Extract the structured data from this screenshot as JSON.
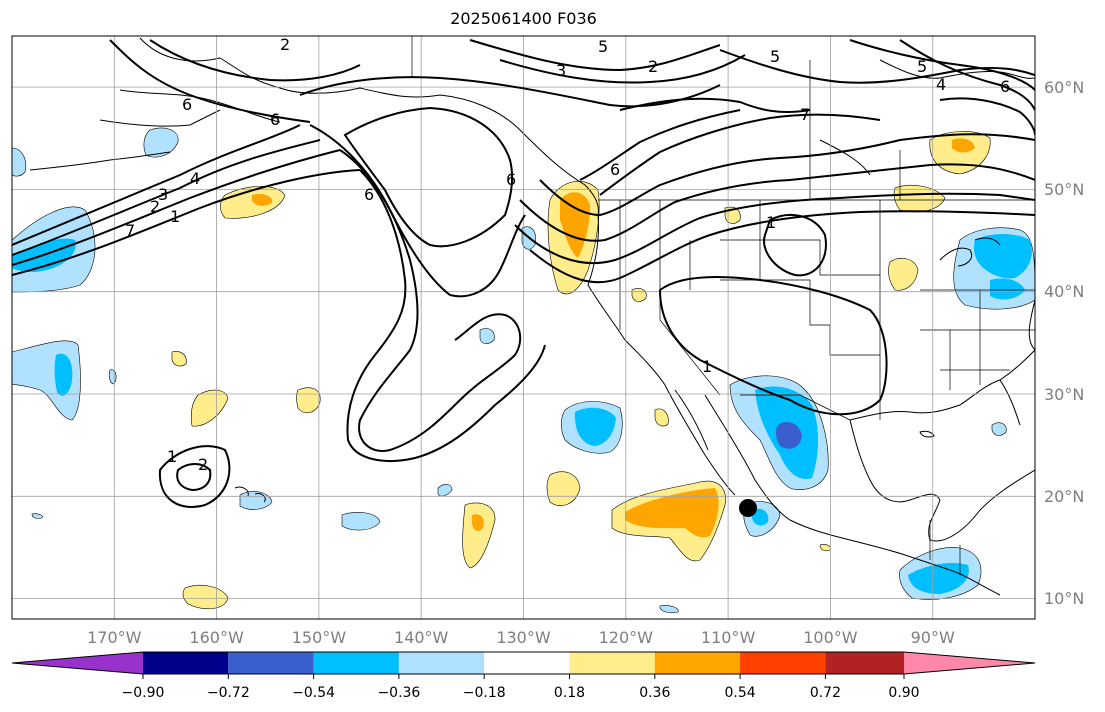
{
  "title": "2025061400 F036",
  "map": {
    "lon_range": [
      -180,
      -80
    ],
    "lat_range": [
      8,
      65
    ],
    "lon_ticks": [
      {
        "value": -170,
        "label": "170°W"
      },
      {
        "value": -160,
        "label": "160°W"
      },
      {
        "value": -150,
        "label": "150°W"
      },
      {
        "value": -140,
        "label": "140°W"
      },
      {
        "value": -130,
        "label": "130°W"
      },
      {
        "value": -120,
        "label": "120°W"
      },
      {
        "value": -110,
        "label": "110°W"
      },
      {
        "value": -100,
        "label": "100°W"
      },
      {
        "value": -90,
        "label": "90°W"
      }
    ],
    "lat_ticks": [
      {
        "value": 60,
        "label": "60°N"
      },
      {
        "value": 50,
        "label": "50°N"
      },
      {
        "value": 40,
        "label": "40°N"
      },
      {
        "value": 30,
        "label": "30°N"
      },
      {
        "value": 20,
        "label": "20°N"
      },
      {
        "value": 10,
        "label": "10°N"
      }
    ],
    "gridlines": true,
    "marker": {
      "lon": -108,
      "lat": 18.8,
      "color": "#000000"
    },
    "contour_labels": [
      "2",
      "6",
      "5",
      "3",
      "2",
      "5",
      "5",
      "4",
      "6",
      "6",
      "7",
      "6",
      "4",
      "3",
      "2",
      "1",
      "7",
      "6",
      "6",
      "1",
      "1",
      "1",
      "2"
    ]
  },
  "colorbar": {
    "colors": [
      "#9932cc",
      "#00008b",
      "#3a5fcd",
      "#00bfff",
      "#b0e2ff",
      "#ffffff",
      "#ffec8b",
      "#ffa500",
      "#ff4000",
      "#b22222",
      "#ff88aa"
    ],
    "tick_labels": [
      "−0.90",
      "−0.72",
      "−0.54",
      "−0.36",
      "−0.18",
      "0.18",
      "0.36",
      "0.54",
      "0.72",
      "0.90"
    ]
  }
}
